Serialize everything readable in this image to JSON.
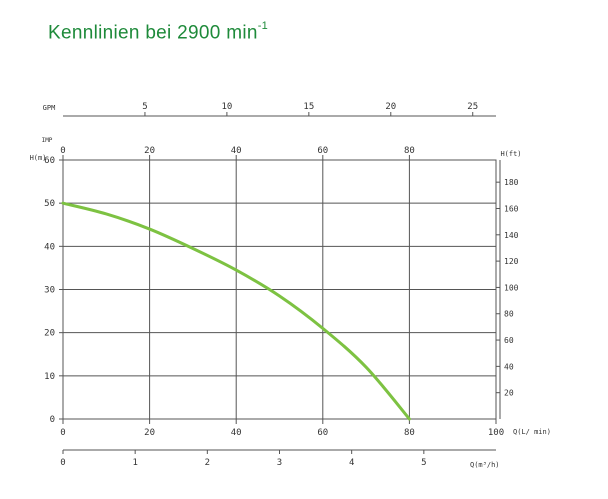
{
  "title": {
    "text": "Kennlinien bei 2900 min",
    "superscript": "-1"
  },
  "chart_data": {
    "type": "line",
    "title": "Kennlinien bei 2900 min-1",
    "axes": {
      "bottom": {
        "label": "Q(L/ min)",
        "ticks": [
          0,
          20,
          40,
          60,
          80,
          100
        ],
        "range": [
          0,
          100
        ]
      },
      "left": {
        "label": "H(m)",
        "ticks": [
          0,
          10,
          20,
          30,
          40,
          50,
          60
        ],
        "range": [
          0,
          60
        ]
      },
      "right": {
        "label": "H(ft)",
        "ticks": [
          20,
          40,
          60,
          80,
          100,
          120,
          140,
          160,
          180
        ],
        "range": [
          0,
          196.85
        ]
      },
      "top_gpm": {
        "label": "GPM",
        "ticks": [
          5,
          10,
          15,
          20,
          25
        ],
        "range": [
          0,
          26.42
        ]
      },
      "top_imp": {
        "label": "IMP",
        "ticks": [
          0,
          20,
          40,
          60,
          80
        ],
        "range": [
          0,
          100
        ]
      },
      "bottom_m3h": {
        "label": "Q(m³/h)",
        "ticks": [
          0,
          1,
          2,
          3,
          4,
          5
        ],
        "range": [
          0,
          6
        ]
      }
    },
    "grid": true,
    "series": [
      {
        "color": "#7dc242",
        "x": [
          0,
          10,
          20,
          30,
          40,
          50,
          60,
          70,
          80
        ],
        "y": [
          50,
          47.5,
          44,
          39.5,
          34.5,
          28.5,
          21,
          12,
          0
        ]
      }
    ]
  }
}
